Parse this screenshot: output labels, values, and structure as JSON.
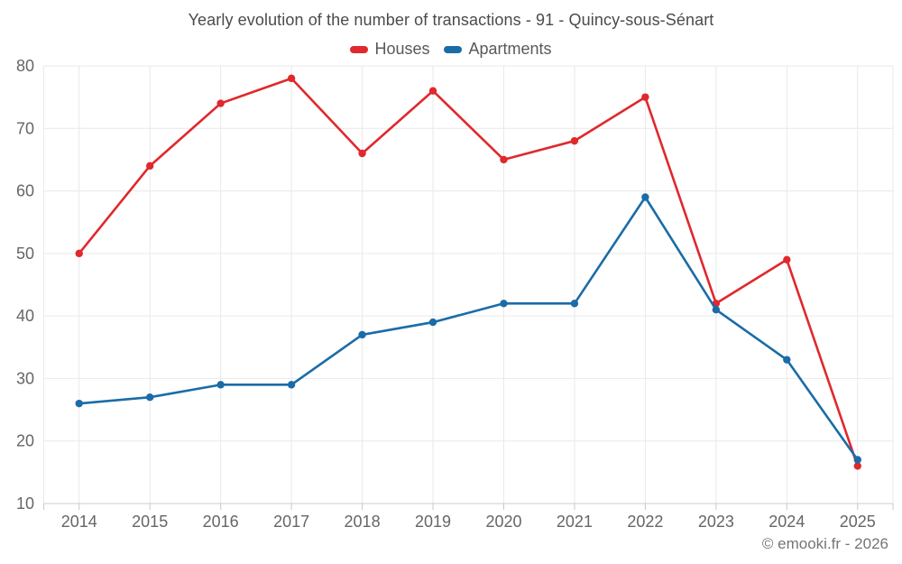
{
  "title": "Yearly evolution of the number of transactions - 91 - Quincy-sous-Sénart",
  "footer": {
    "text": "© emooki.fr - 2026"
  },
  "chart_data": {
    "type": "line",
    "title": "Yearly evolution of the number of transactions - 91 - Quincy-sous-Sénart",
    "categories": [
      "2014",
      "2015",
      "2016",
      "2017",
      "2018",
      "2019",
      "2020",
      "2021",
      "2022",
      "2023",
      "2024",
      "2025"
    ],
    "series": [
      {
        "name": "Houses",
        "color": "#e0282d",
        "values": [
          50,
          64,
          74,
          78,
          66,
          76,
          65,
          68,
          75,
          42,
          49,
          16
        ]
      },
      {
        "name": "Apartments",
        "color": "#1a6ca8",
        "values": [
          26,
          27,
          29,
          29,
          37,
          39,
          42,
          42,
          59,
          41,
          33,
          17
        ]
      }
    ],
    "xlabel": "",
    "ylabel": "",
    "ylim": [
      10,
      80
    ],
    "ytick_step": 10,
    "grid": true,
    "legend_position": "top",
    "marker": "circle"
  }
}
